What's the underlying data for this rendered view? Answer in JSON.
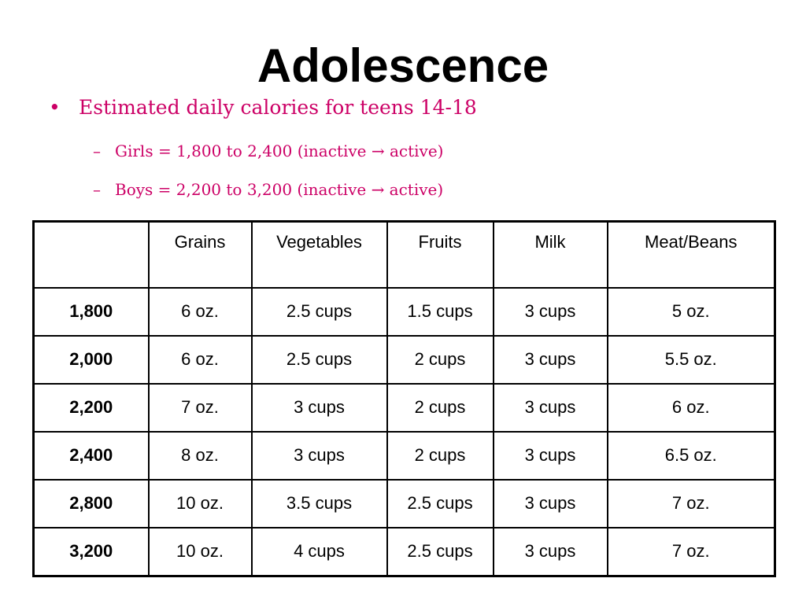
{
  "slide": {
    "title": "Adolescence",
    "bullets": {
      "main": "Estimated daily calories for teens 14-18",
      "sub": [
        "Girls = 1,800 to 2,400 (inactive → active)",
        "Boys = 2,200 to 3,200 (inactive → active)"
      ]
    },
    "markers": {
      "main": "•",
      "sub": "–"
    }
  },
  "table": {
    "headers": [
      "",
      "Grains",
      "Vegetables",
      "Fruits",
      "Milk",
      "Meat/Beans"
    ],
    "rows": [
      [
        "1,800",
        "6 oz.",
        "2.5 cups",
        "1.5 cups",
        "3 cups",
        "5 oz."
      ],
      [
        "2,000",
        "6 oz.",
        "2.5 cups",
        "2 cups",
        "3 cups",
        "5.5 oz."
      ],
      [
        "2,200",
        "7 oz.",
        "3 cups",
        "2 cups",
        "3 cups",
        "6 oz."
      ],
      [
        "2,400",
        "8 oz.",
        "3 cups",
        "2 cups",
        "3 cups",
        "6.5 oz."
      ],
      [
        "2,800",
        "10 oz.",
        "3.5 cups",
        "2.5 cups",
        "3 cups",
        "7 oz."
      ],
      [
        "3,200",
        "10 oz.",
        "4 cups",
        "2.5 cups",
        "3 cups",
        "7 oz."
      ]
    ]
  },
  "colors": {
    "title": "#000000",
    "bullet_text": "#cc0066",
    "table_border": "#000000"
  }
}
